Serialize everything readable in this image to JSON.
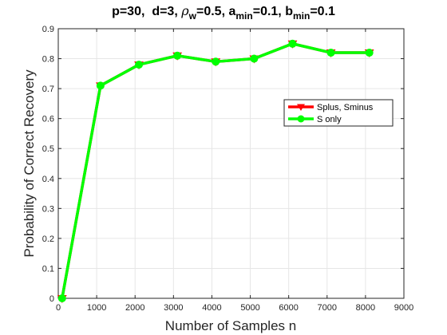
{
  "chart_data": {
    "type": "line",
    "title_parts": {
      "p": "p=30,",
      "d": "d=3,",
      "rho": "ρ",
      "rho_sub": "w",
      "rho_val": "=0.5,",
      "a": "a",
      "a_sub": "min",
      "a_val": "=0.1,",
      "b": "b",
      "b_sub": "min",
      "b_val": "=0.1"
    },
    "xlabel": "Number of Samples n",
    "ylabel": "Probability of Correct Recovery",
    "xlim": [
      0,
      9000
    ],
    "ylim": [
      0,
      0.9
    ],
    "xticks": [
      "0",
      "1000",
      "2000",
      "3000",
      "4000",
      "5000",
      "6000",
      "7000",
      "8000",
      "9000"
    ],
    "yticks": [
      "0",
      "0.1",
      "0.2",
      "0.3",
      "0.4",
      "0.5",
      "0.6",
      "0.7",
      "0.8",
      "0.9"
    ],
    "grid": true,
    "legend_position": "right, mid-upper",
    "x": [
      100,
      1100,
      2100,
      3100,
      4100,
      5100,
      6100,
      7100,
      8100
    ],
    "series": [
      {
        "name": "Splus, Sminus",
        "color": "#ff0000",
        "marker": "triangle-down",
        "values": [
          0,
          0.71,
          0.78,
          0.81,
          0.79,
          0.8,
          0.85,
          0.82,
          0.82
        ]
      },
      {
        "name": "S only",
        "color": "#00ff00",
        "marker": "circle",
        "values": [
          0,
          0.71,
          0.78,
          0.81,
          0.79,
          0.8,
          0.85,
          0.82,
          0.82
        ]
      }
    ]
  }
}
